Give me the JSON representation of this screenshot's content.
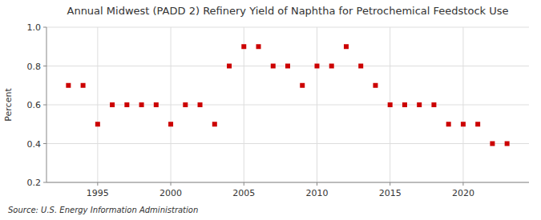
{
  "chart_data": {
    "type": "scatter",
    "title": "Annual Midwest (PADD 2) Refinery Yield of Naphtha for Petrochemical Feedstock Use",
    "ylabel": "Percent",
    "source": "Source: U.S. Energy Information Administration",
    "x": [
      1993,
      1994,
      1995,
      1996,
      1997,
      1998,
      1999,
      2000,
      2001,
      2002,
      2003,
      2004,
      2005,
      2006,
      2007,
      2008,
      2009,
      2010,
      2011,
      2012,
      2013,
      2014,
      2015,
      2016,
      2017,
      2018,
      2019,
      2020,
      2021,
      2022,
      2023
    ],
    "values": [
      0.7,
      0.7,
      0.5,
      0.6,
      0.6,
      0.6,
      0.6,
      0.5,
      0.6,
      0.6,
      0.5,
      0.8,
      0.9,
      0.9,
      0.8,
      0.8,
      0.7,
      0.8,
      0.8,
      0.9,
      0.8,
      0.7,
      0.6,
      0.6,
      0.6,
      0.6,
      0.5,
      0.5,
      0.5,
      0.4,
      0.4
    ],
    "color": "#cc0000",
    "marker": "square",
    "xlim": [
      1991.5,
      2024.5
    ],
    "xticks": [
      1995,
      2000,
      2005,
      2010,
      2015,
      2020
    ],
    "ylim": [
      0.2,
      1.0
    ],
    "yticks": [
      0.2,
      0.4,
      0.6,
      0.8,
      {
        "value": 1.0,
        "label": "1.0"
      }
    ],
    "grid": true
  }
}
